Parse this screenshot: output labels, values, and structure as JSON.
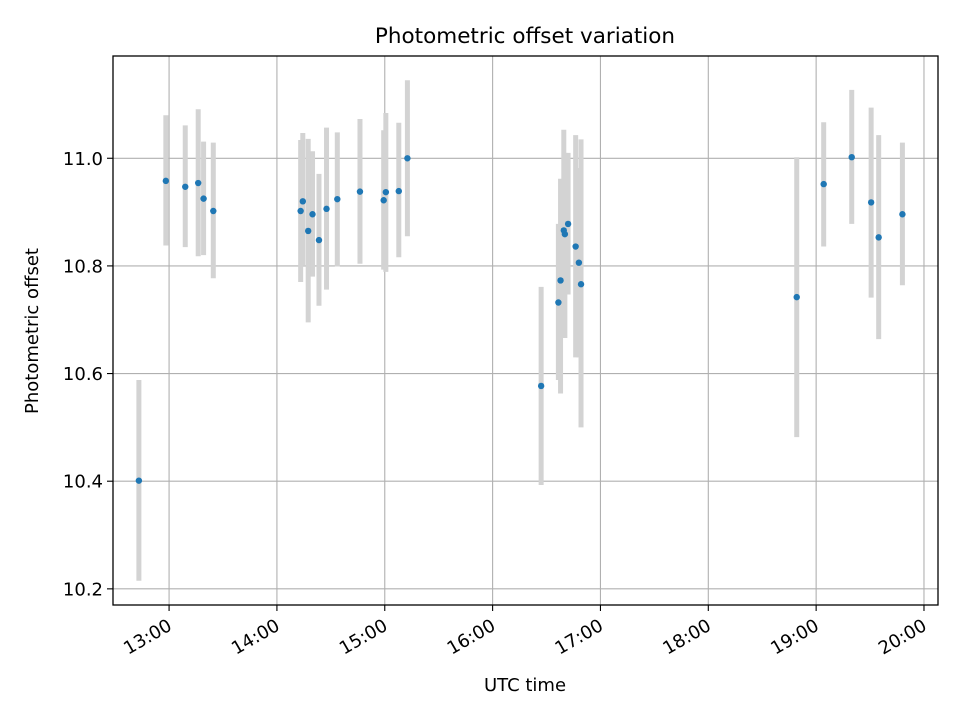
{
  "chart_data": {
    "type": "scatter",
    "title": "Photometric offset variation",
    "xlabel": "UTC time",
    "ylabel": "Photometric offset",
    "x_unit": "UTC hour (decimal)",
    "xlim": [
      12.48,
      20.13
    ],
    "ylim": [
      10.17,
      11.19
    ],
    "grid": true,
    "x_ticks": [
      {
        "value": 13,
        "label": "13:00"
      },
      {
        "value": 14,
        "label": "14:00"
      },
      {
        "value": 15,
        "label": "15:00"
      },
      {
        "value": 16,
        "label": "16:00"
      },
      {
        "value": 17,
        "label": "17:00"
      },
      {
        "value": 18,
        "label": "18:00"
      },
      {
        "value": 19,
        "label": "19:00"
      },
      {
        "value": 20,
        "label": "20:00"
      }
    ],
    "y_ticks": [
      {
        "value": 10.2,
        "label": "10.2"
      },
      {
        "value": 10.4,
        "label": "10.4"
      },
      {
        "value": 10.6,
        "label": "10.6"
      },
      {
        "value": 10.8,
        "label": "10.8"
      },
      {
        "value": 11.0,
        "label": "11.0"
      }
    ],
    "marker_color": "#1f77b4",
    "errorbar_color": "#d3d3d3",
    "points": [
      {
        "x": 12.72,
        "y": 10.401,
        "ylo": 10.215,
        "yhi": 10.588
      },
      {
        "x": 12.97,
        "y": 10.958,
        "ylo": 10.838,
        "yhi": 11.08
      },
      {
        "x": 13.15,
        "y": 10.947,
        "ylo": 10.835,
        "yhi": 11.061
      },
      {
        "x": 13.27,
        "y": 10.954,
        "ylo": 10.818,
        "yhi": 11.091
      },
      {
        "x": 13.32,
        "y": 10.925,
        "ylo": 10.82,
        "yhi": 11.031
      },
      {
        "x": 13.41,
        "y": 10.902,
        "ylo": 10.777,
        "yhi": 11.029
      },
      {
        "x": 14.22,
        "y": 10.902,
        "ylo": 10.77,
        "yhi": 11.034
      },
      {
        "x": 14.24,
        "y": 10.92,
        "ylo": 10.8,
        "yhi": 11.047
      },
      {
        "x": 14.29,
        "y": 10.865,
        "ylo": 10.695,
        "yhi": 11.036
      },
      {
        "x": 14.33,
        "y": 10.896,
        "ylo": 10.78,
        "yhi": 11.013
      },
      {
        "x": 14.39,
        "y": 10.848,
        "ylo": 10.726,
        "yhi": 10.971
      },
      {
        "x": 14.46,
        "y": 10.906,
        "ylo": 10.756,
        "yhi": 11.057
      },
      {
        "x": 14.56,
        "y": 10.924,
        "ylo": 10.799,
        "yhi": 11.048
      },
      {
        "x": 14.77,
        "y": 10.938,
        "ylo": 10.804,
        "yhi": 11.073
      },
      {
        "x": 14.99,
        "y": 10.922,
        "ylo": 10.793,
        "yhi": 11.052
      },
      {
        "x": 15.01,
        "y": 10.937,
        "ylo": 10.789,
        "yhi": 11.084
      },
      {
        "x": 15.13,
        "y": 10.939,
        "ylo": 10.816,
        "yhi": 11.066
      },
      {
        "x": 15.21,
        "y": 11.0,
        "ylo": 10.855,
        "yhi": 11.145
      },
      {
        "x": 16.45,
        "y": 10.577,
        "ylo": 10.393,
        "yhi": 10.761
      },
      {
        "x": 16.61,
        "y": 10.732,
        "ylo": 10.588,
        "yhi": 10.878
      },
      {
        "x": 16.63,
        "y": 10.773,
        "ylo": 10.563,
        "yhi": 10.962
      },
      {
        "x": 16.66,
        "y": 10.866,
        "ylo": 10.68,
        "yhi": 11.053
      },
      {
        "x": 16.67,
        "y": 10.859,
        "ylo": 10.666,
        "yhi": 11.01
      },
      {
        "x": 16.7,
        "y": 10.878,
        "ylo": 10.747,
        "yhi": 11.01
      },
      {
        "x": 16.77,
        "y": 10.836,
        "ylo": 10.63,
        "yhi": 11.043
      },
      {
        "x": 16.8,
        "y": 10.806,
        "ylo": 10.63,
        "yhi": 10.982
      },
      {
        "x": 16.82,
        "y": 10.766,
        "ylo": 10.5,
        "yhi": 11.035
      },
      {
        "x": 18.82,
        "y": 10.742,
        "ylo": 10.482,
        "yhi": 11.002
      },
      {
        "x": 19.07,
        "y": 10.952,
        "ylo": 10.836,
        "yhi": 11.067
      },
      {
        "x": 19.33,
        "y": 11.002,
        "ylo": 10.878,
        "yhi": 11.127
      },
      {
        "x": 19.51,
        "y": 10.918,
        "ylo": 10.741,
        "yhi": 11.094
      },
      {
        "x": 19.58,
        "y": 10.853,
        "ylo": 10.664,
        "yhi": 11.043
      },
      {
        "x": 19.8,
        "y": 10.896,
        "ylo": 10.764,
        "yhi": 11.029
      }
    ]
  }
}
